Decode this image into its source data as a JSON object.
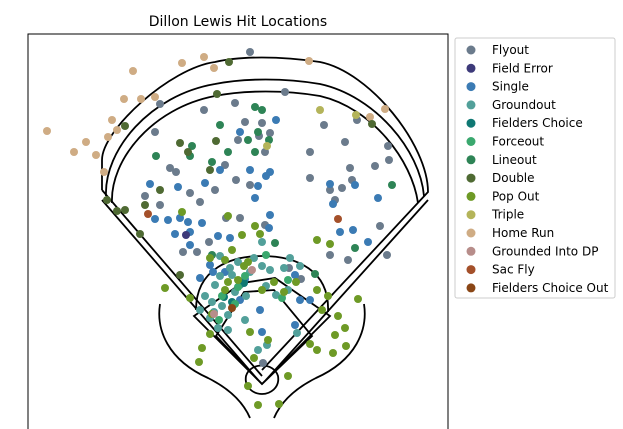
{
  "chart_data": {
    "type": "scatter",
    "title": "Dillon Lewis Hit Locations",
    "xlabel": "",
    "ylabel": "",
    "axes_visible": false,
    "legend": {
      "placement": "right"
    },
    "series": [
      {
        "name": "Flyout",
        "color": "#6b7b8c"
      },
      {
        "name": "Field Error",
        "color": "#3d3a7a"
      },
      {
        "name": "Single",
        "color": "#3b7bb4"
      },
      {
        "name": "Groundout",
        "color": "#52a09a"
      },
      {
        "name": "Fielders Choice",
        "color": "#0f7873"
      },
      {
        "name": "Forceout",
        "color": "#3aa86e"
      },
      {
        "name": "Lineout",
        "color": "#2e8456"
      },
      {
        "name": "Double",
        "color": "#4f6a33"
      },
      {
        "name": "Pop Out",
        "color": "#6e9a26"
      },
      {
        "name": "Triple",
        "color": "#b4b45a"
      },
      {
        "name": "Home Run",
        "color": "#cfac84"
      },
      {
        "name": "Grounded Into DP",
        "color": "#b78d8a"
      },
      {
        "name": "Sac Fly",
        "color": "#a4502a"
      },
      {
        "name": "Fielders Choice Out",
        "color": "#8a4616"
      }
    ],
    "points": [
      [
        "Home Run",
        47,
        131
      ],
      [
        "Home Run",
        74,
        152
      ],
      [
        "Home Run",
        86,
        142
      ],
      [
        "Home Run",
        96,
        155
      ],
      [
        "Home Run",
        108,
        137
      ],
      [
        "Home Run",
        112,
        120
      ],
      [
        "Home Run",
        117,
        130
      ],
      [
        "Home Run",
        124,
        99
      ],
      [
        "Home Run",
        133,
        71
      ],
      [
        "Home Run",
        141,
        99
      ],
      [
        "Home Run",
        155,
        97
      ],
      [
        "Home Run",
        182,
        63
      ],
      [
        "Home Run",
        204,
        57
      ],
      [
        "Home Run",
        214,
        68
      ],
      [
        "Home Run",
        309,
        61
      ],
      [
        "Home Run",
        104,
        172
      ],
      [
        "Home Run",
        385,
        109
      ],
      [
        "Home Run",
        370,
        117
      ],
      [
        "Flyout",
        250,
        52
      ],
      [
        "Flyout",
        155,
        132
      ],
      [
        "Flyout",
        160,
        104
      ],
      [
        "Flyout",
        204,
        110
      ],
      [
        "Flyout",
        235,
        103
      ],
      [
        "Flyout",
        245,
        122
      ],
      [
        "Flyout",
        259,
        136
      ],
      [
        "Flyout",
        262,
        123
      ],
      [
        "Flyout",
        270,
        133
      ],
      [
        "Flyout",
        238,
        140
      ],
      [
        "Flyout",
        265,
        152
      ],
      [
        "Flyout",
        285,
        92
      ],
      [
        "Flyout",
        324,
        125
      ],
      [
        "Flyout",
        345,
        142
      ],
      [
        "Flyout",
        357,
        120
      ],
      [
        "Flyout",
        388,
        146
      ],
      [
        "Flyout",
        375,
        166
      ],
      [
        "Flyout",
        389,
        160
      ],
      [
        "Flyout",
        310,
        152
      ],
      [
        "Flyout",
        350,
        168
      ],
      [
        "Flyout",
        352,
        180
      ],
      [
        "Flyout",
        342,
        188
      ],
      [
        "Flyout",
        330,
        190
      ],
      [
        "Flyout",
        335,
        200
      ],
      [
        "Flyout",
        310,
        178
      ],
      [
        "Flyout",
        380,
        226
      ],
      [
        "Flyout",
        387,
        255
      ],
      [
        "Flyout",
        348,
        260
      ],
      [
        "Flyout",
        236,
        180
      ],
      [
        "Flyout",
        250,
        185
      ],
      [
        "Flyout",
        225,
        165
      ],
      [
        "Flyout",
        215,
        190
      ],
      [
        "Flyout",
        190,
        193
      ],
      [
        "Flyout",
        176,
        172
      ],
      [
        "Flyout",
        200,
        202
      ],
      [
        "Flyout",
        160,
        205
      ],
      [
        "Flyout",
        145,
        196
      ],
      [
        "Flyout",
        183,
        252
      ],
      [
        "Flyout",
        197,
        252
      ],
      [
        "Flyout",
        265,
        225
      ],
      [
        "Flyout",
        240,
        218
      ],
      [
        "Flyout",
        289,
        268
      ],
      [
        "Flyout",
        330,
        255
      ],
      [
        "Flyout",
        170,
        168
      ],
      [
        "Flyout",
        226,
        218
      ],
      [
        "Flyout",
        301,
        279
      ],
      [
        "Flyout",
        209,
        242
      ],
      [
        "Flyout",
        263,
        363
      ],
      [
        "Single",
        150,
        184
      ],
      [
        "Single",
        178,
        187
      ],
      [
        "Single",
        155,
        219
      ],
      [
        "Single",
        168,
        220
      ],
      [
        "Single",
        180,
        218
      ],
      [
        "Single",
        175,
        234
      ],
      [
        "Single",
        190,
        232
      ],
      [
        "Single",
        205,
        183
      ],
      [
        "Single",
        220,
        170
      ],
      [
        "Single",
        240,
        132
      ],
      [
        "Single",
        276,
        120
      ],
      [
        "Single",
        270,
        172
      ],
      [
        "Single",
        266,
        176
      ],
      [
        "Single",
        250,
        170
      ],
      [
        "Single",
        258,
        186
      ],
      [
        "Single",
        255,
        198
      ],
      [
        "Single",
        270,
        215
      ],
      [
        "Single",
        269,
        228
      ],
      [
        "Single",
        230,
        238
      ],
      [
        "Single",
        218,
        236
      ],
      [
        "Single",
        202,
        223
      ],
      [
        "Single",
        225,
        272
      ],
      [
        "Single",
        213,
        272
      ],
      [
        "Single",
        200,
        278
      ],
      [
        "Single",
        330,
        184
      ],
      [
        "Single",
        355,
        185
      ],
      [
        "Single",
        333,
        204
      ],
      [
        "Single",
        340,
        232
      ],
      [
        "Single",
        368,
        242
      ],
      [
        "Single",
        378,
        198
      ],
      [
        "Single",
        353,
        230
      ],
      [
        "Single",
        300,
        300
      ],
      [
        "Single",
        295,
        275
      ],
      [
        "Single",
        260,
        310
      ],
      [
        "Single",
        240,
        300
      ],
      [
        "Single",
        188,
        222
      ],
      [
        "Single",
        190,
        245
      ],
      [
        "Single",
        210,
        265
      ],
      [
        "Single",
        245,
        279
      ],
      [
        "Single",
        262,
        332
      ],
      [
        "Single",
        295,
        325
      ],
      [
        "Single",
        310,
        300
      ],
      [
        "Field Error",
        186,
        235
      ],
      [
        "Groundout",
        220,
        276
      ],
      [
        "Groundout",
        230,
        268
      ],
      [
        "Groundout",
        238,
        262
      ],
      [
        "Groundout",
        250,
        272
      ],
      [
        "Groundout",
        240,
        285
      ],
      [
        "Groundout",
        215,
        285
      ],
      [
        "Groundout",
        205,
        296
      ],
      [
        "Groundout",
        212,
        302
      ],
      [
        "Groundout",
        222,
        306
      ],
      [
        "Groundout",
        228,
        315
      ],
      [
        "Groundout",
        210,
        318
      ],
      [
        "Groundout",
        218,
        328
      ],
      [
        "Groundout",
        200,
        310
      ],
      [
        "Groundout",
        235,
        292
      ],
      [
        "Groundout",
        246,
        296
      ],
      [
        "Groundout",
        262,
        266
      ],
      [
        "Groundout",
        270,
        270
      ],
      [
        "Groundout",
        284,
        268
      ],
      [
        "Groundout",
        290,
        258
      ],
      [
        "Groundout",
        300,
        266
      ],
      [
        "Groundout",
        288,
        290
      ],
      [
        "Groundout",
        267,
        345
      ],
      [
        "Groundout",
        258,
        350
      ],
      [
        "Groundout",
        297,
        333
      ],
      [
        "Groundout",
        228,
        330
      ],
      [
        "Groundout",
        245,
        320
      ],
      [
        "Groundout",
        254,
        258
      ],
      [
        "Groundout",
        262,
        242
      ],
      [
        "Groundout",
        220,
        256
      ],
      [
        "Groundout",
        214,
        312
      ],
      [
        "Groundout",
        232,
        275
      ],
      [
        "Groundout",
        276,
        295
      ],
      [
        "Groundout",
        266,
        286
      ],
      [
        "Fielders Choice",
        224,
        297
      ],
      [
        "Fielders Choice",
        232,
        302
      ],
      [
        "Fielders Choice",
        244,
        283
      ],
      [
        "Forceout",
        238,
        287
      ],
      [
        "Forceout",
        245,
        276
      ],
      [
        "Forceout",
        219,
        320
      ],
      [
        "Forceout",
        282,
        298
      ],
      [
        "Forceout",
        222,
        296
      ],
      [
        "Forceout",
        235,
        304
      ],
      [
        "Forceout",
        266,
        255
      ],
      [
        "Forceout",
        288,
        280
      ],
      [
        "Lineout",
        156,
        156
      ],
      [
        "Lineout",
        190,
        156
      ],
      [
        "Lineout",
        212,
        162
      ],
      [
        "Lineout",
        228,
        152
      ],
      [
        "Lineout",
        220,
        125
      ],
      [
        "Lineout",
        255,
        107
      ],
      [
        "Lineout",
        262,
        110
      ],
      [
        "Lineout",
        255,
        152
      ],
      [
        "Lineout",
        269,
        140
      ],
      [
        "Lineout",
        275,
        243
      ],
      [
        "Lineout",
        315,
        274
      ],
      [
        "Lineout",
        392,
        185
      ],
      [
        "Lineout",
        355,
        248
      ],
      [
        "Lineout",
        212,
        255
      ],
      [
        "Lineout",
        258,
        132
      ],
      [
        "Lineout",
        248,
        140
      ],
      [
        "Lineout",
        192,
        146
      ],
      [
        "Double",
        107,
        200
      ],
      [
        "Double",
        117,
        211
      ],
      [
        "Double",
        125,
        210
      ],
      [
        "Double",
        145,
        205
      ],
      [
        "Double",
        140,
        234
      ],
      [
        "Double",
        180,
        275
      ],
      [
        "Double",
        160,
        190
      ],
      [
        "Double",
        180,
        143
      ],
      [
        "Double",
        188,
        152
      ],
      [
        "Double",
        210,
        170
      ],
      [
        "Double",
        217,
        94
      ],
      [
        "Double",
        229,
        62
      ],
      [
        "Double",
        372,
        124
      ],
      [
        "Double",
        125,
        126
      ],
      [
        "Double",
        216,
        141
      ],
      [
        "Pop Out",
        165,
        288
      ],
      [
        "Pop Out",
        190,
        298
      ],
      [
        "Pop Out",
        202,
        348
      ],
      [
        "Pop Out",
        210,
        334
      ],
      [
        "Pop Out",
        210,
        258
      ],
      [
        "Pop Out",
        225,
        260
      ],
      [
        "Pop Out",
        232,
        250
      ],
      [
        "Pop Out",
        182,
        212
      ],
      [
        "Pop Out",
        228,
        216
      ],
      [
        "Pop Out",
        255,
        226
      ],
      [
        "Pop Out",
        260,
        234
      ],
      [
        "Pop Out",
        242,
        235
      ],
      [
        "Pop Out",
        248,
        262
      ],
      [
        "Pop Out",
        238,
        280
      ],
      [
        "Pop Out",
        228,
        282
      ],
      [
        "Pop Out",
        317,
        240
      ],
      [
        "Pop Out",
        330,
        244
      ],
      [
        "Pop Out",
        328,
        296
      ],
      [
        "Pop Out",
        338,
        316
      ],
      [
        "Pop Out",
        322,
        310
      ],
      [
        "Pop Out",
        317,
        290
      ],
      [
        "Pop Out",
        358,
        299
      ],
      [
        "Pop Out",
        345,
        328
      ],
      [
        "Pop Out",
        335,
        335
      ],
      [
        "Pop Out",
        346,
        346
      ],
      [
        "Pop Out",
        317,
        350
      ],
      [
        "Pop Out",
        310,
        344
      ],
      [
        "Pop Out",
        333,
        353
      ],
      [
        "Pop Out",
        288,
        376
      ],
      [
        "Pop Out",
        279,
        404
      ],
      [
        "Pop Out",
        258,
        405
      ],
      [
        "Pop Out",
        254,
        358
      ],
      [
        "Pop Out",
        268,
        340
      ],
      [
        "Pop Out",
        262,
        290
      ],
      [
        "Pop Out",
        284,
        292
      ],
      [
        "Pop Out",
        274,
        282
      ],
      [
        "Pop Out",
        199,
        362
      ],
      [
        "Pop Out",
        212,
        314
      ],
      [
        "Pop Out",
        250,
        332
      ],
      [
        "Pop Out",
        248,
        386
      ],
      [
        "Pop Out",
        244,
        266
      ],
      [
        "Pop Out",
        225,
        290
      ],
      [
        "Pop Out",
        296,
        282
      ],
      [
        "Triple",
        320,
        110
      ],
      [
        "Triple",
        356,
        115
      ],
      [
        "Triple",
        267,
        146
      ],
      [
        "Grounded Into DP",
        252,
        270
      ],
      [
        "Grounded Into DP",
        214,
        314
      ],
      [
        "Sac Fly",
        148,
        214
      ],
      [
        "Sac Fly",
        338,
        219
      ],
      [
        "Fielders Choice Out",
        232,
        308
      ]
    ]
  }
}
